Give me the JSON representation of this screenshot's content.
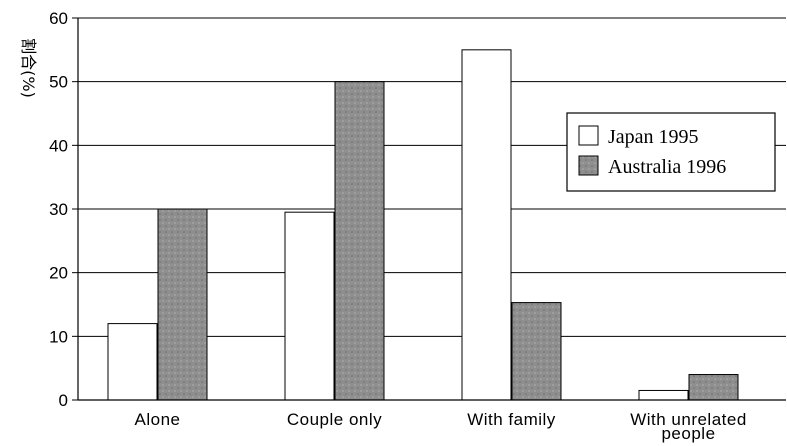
{
  "chart_data": {
    "type": "bar",
    "title": "",
    "ylabel": "割合(%)",
    "xlabel": "",
    "categories": [
      "Alone",
      "Couple only",
      "With family",
      "With unrelated people"
    ],
    "category_label_lines": [
      [
        "Alone"
      ],
      [
        "Couple only"
      ],
      [
        "With family"
      ],
      [
        "With unrelated",
        "people"
      ]
    ],
    "series": [
      {
        "name": "Japan 1995",
        "values": [
          12,
          29.5,
          55,
          1.5
        ],
        "color": "#ffffff"
      },
      {
        "name": "Australia 1996",
        "values": [
          30,
          50,
          15.3,
          4
        ],
        "color": "#8e8e8e"
      }
    ],
    "ylim": [
      0,
      60
    ],
    "yticks": [
      0,
      10,
      20,
      30,
      40,
      50,
      60
    ],
    "grid": true,
    "legend_position": "top-right"
  }
}
